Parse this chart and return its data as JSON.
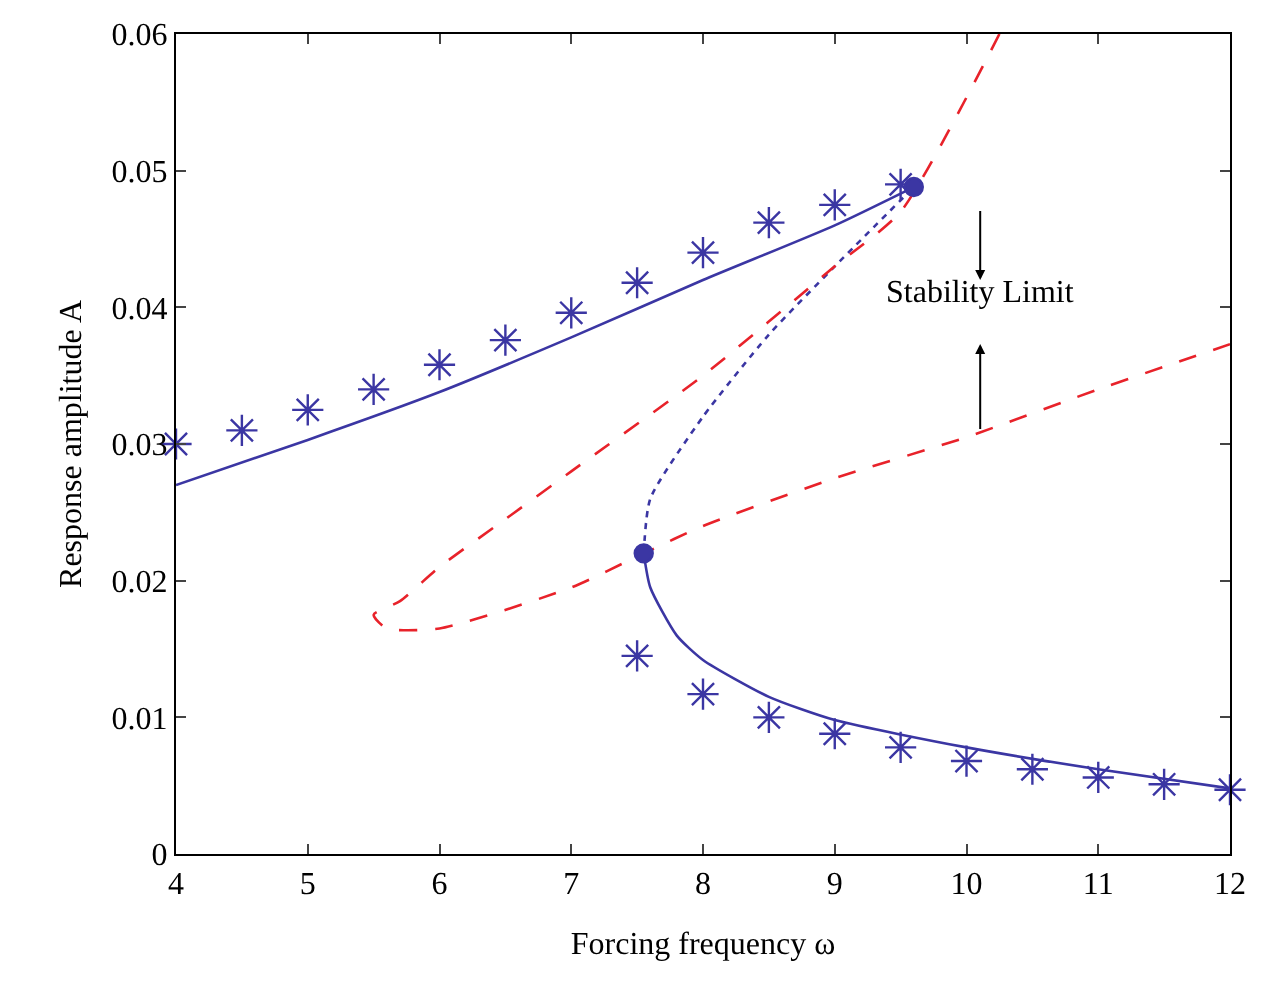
{
  "chart_data": {
    "type": "line",
    "xlabel": "Forcing frequency ω",
    "ylabel": "Response amplitude A",
    "xlim": [
      4,
      12
    ],
    "ylim": [
      0,
      0.06
    ],
    "xticks": [
      4,
      5,
      6,
      7,
      8,
      9,
      10,
      11,
      12
    ],
    "yticks": [
      0,
      0.01,
      0.02,
      0.03,
      0.04,
      0.05,
      0.06
    ],
    "grid": false,
    "annotations": [
      "Stability Limit"
    ],
    "series": [
      {
        "color": "#3b36a3",
        "line_style": "solid",
        "marker": "none",
        "x": [
          4,
          5,
          6,
          7,
          8,
          9,
          9.6
        ],
        "values": [
          0.027,
          0.0303,
          0.0338,
          0.0378,
          0.042,
          0.046,
          0.0488
        ]
      },
      {
        "color": "#3b36a3",
        "line_style": "solid",
        "marker": "none",
        "x": [
          7.55,
          7.6,
          7.8,
          8,
          8.5,
          9,
          10,
          11,
          12
        ],
        "values": [
          0.022,
          0.0195,
          0.016,
          0.0142,
          0.0115,
          0.0098,
          0.0078,
          0.0062,
          0.0048
        ]
      },
      {
        "color": "#3b36a3",
        "line_style": "dotted",
        "marker": "none",
        "x": [
          7.55,
          7.6,
          8,
          8.5,
          9,
          9.6
        ],
        "values": [
          0.022,
          0.026,
          0.032,
          0.038,
          0.043,
          0.0488
        ]
      },
      {
        "color": "#e8222a",
        "line_style": "dashed",
        "marker": "none",
        "x": [
          10.25,
          9.5,
          9,
          8,
          7,
          6.5,
          6,
          5.7,
          5.5,
          5.6,
          6,
          7,
          7.55,
          8,
          9,
          10,
          11,
          12
        ],
        "values": [
          0.06,
          0.047,
          0.043,
          0.035,
          0.028,
          0.0245,
          0.021,
          0.0185,
          0.0175,
          0.0165,
          0.0165,
          0.0195,
          0.022,
          0.024,
          0.0275,
          0.0305,
          0.034,
          0.0373
        ]
      },
      {
        "type": "scatter",
        "color": "#3b36a3",
        "marker": "cross",
        "x": [
          4,
          4.5,
          5,
          5.5,
          6,
          6.5,
          7,
          7.5,
          8,
          8.5,
          9,
          9.5
        ],
        "values": [
          0.03,
          0.031,
          0.0325,
          0.034,
          0.0358,
          0.0376,
          0.0396,
          0.0418,
          0.044,
          0.0462,
          0.0475,
          0.049
        ]
      },
      {
        "type": "scatter",
        "color": "#3b36a3",
        "marker": "cross",
        "x": [
          7.5,
          8,
          8.5,
          9,
          9.5,
          10,
          10.5,
          11,
          11.5,
          12
        ],
        "values": [
          0.0145,
          0.0117,
          0.01,
          0.0088,
          0.0078,
          0.0068,
          0.0062,
          0.0056,
          0.0051,
          0.0047
        ]
      },
      {
        "type": "scatter",
        "color": "#3b36a3",
        "marker": "circle",
        "x": [
          7.55,
          9.6
        ],
        "values": [
          0.022,
          0.0488
        ]
      }
    ]
  }
}
